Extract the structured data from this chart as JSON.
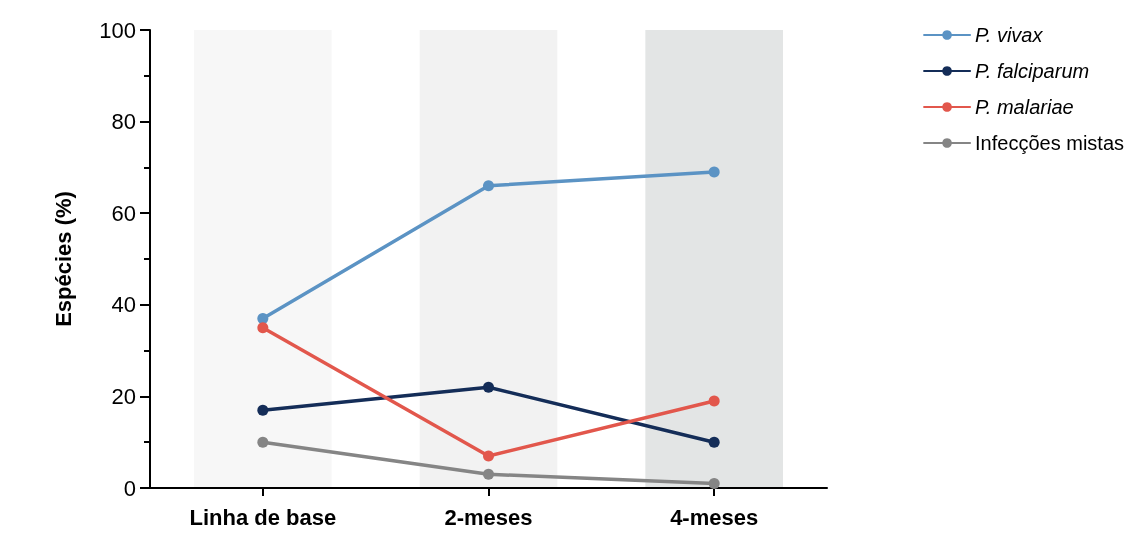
{
  "chart_data": {
    "type": "line",
    "ylabel": "Espécies (%)",
    "categories": [
      "Linha de base",
      "2-meses",
      "4-meses"
    ],
    "series": [
      {
        "name": "P. vivax",
        "color": "#5b93c4",
        "values": [
          37,
          66,
          69
        ]
      },
      {
        "name": "P. falciparum",
        "color": "#142d58",
        "values": [
          17,
          22,
          10
        ]
      },
      {
        "name": "P. malariae",
        "color": "#e2574c",
        "values": [
          35,
          7,
          19
        ]
      },
      {
        "name": "Infecções mistas",
        "color": "#858585",
        "values": [
          10,
          3,
          1
        ]
      }
    ],
    "ylim": [
      0,
      100
    ],
    "yticks": [
      0,
      20,
      40,
      60,
      80,
      100
    ],
    "bands": [
      {
        "axis": "x",
        "from": "Linha de base",
        "to": "Linha de base",
        "color": "#f7f7f7"
      },
      {
        "axis": "x",
        "from": "2-meses",
        "to": "2-meses",
        "color": "#f2f2f2"
      },
      {
        "axis": "x",
        "from": "4-meses",
        "to": "4-meses",
        "color": "#e3e5e5"
      }
    ],
    "grid": false,
    "legend": "top right",
    "marker": "circle",
    "line_style": "solid"
  }
}
